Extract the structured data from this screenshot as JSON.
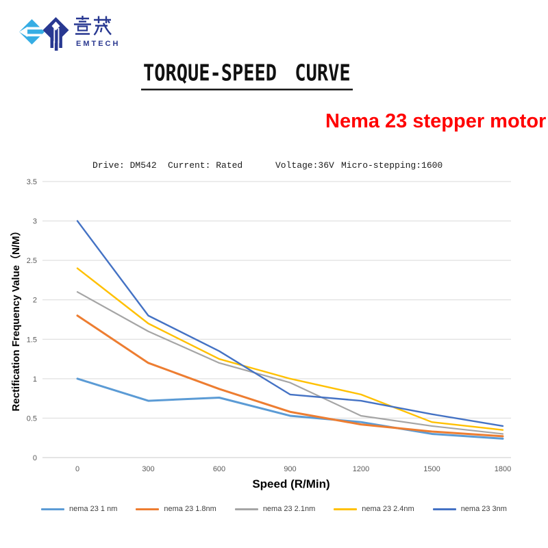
{
  "logo": {
    "cn_text": "壹茂",
    "en_text": "EMTECH",
    "light_blue": "#36ade4",
    "navy": "#283891"
  },
  "title": "TORQUE-SPEED CURVE",
  "subtitle": "Nema 23 stepper motor",
  "subtitle_color": "#ff0000",
  "specs": [
    "Drive: DM542",
    "Current: Rated",
    "Voltage:36V",
    "Micro-stepping:1600"
  ],
  "chart_data": {
    "type": "line",
    "title": "",
    "xlabel": "Speed (R/Min)",
    "ylabel": "Rectification Frequency Value（N/M）",
    "categories": [
      0,
      300,
      600,
      900,
      1200,
      1500,
      1800
    ],
    "ylim": [
      0,
      3.5
    ],
    "ytick_step": 0.5,
    "grid": true,
    "legend_position": "bottom",
    "gridline_color": "#d9d9d9",
    "tick_label_color": "#595959",
    "series": [
      {
        "name": "nema 23 1 nm",
        "color": "#5b9bd5",
        "values": [
          1.0,
          0.72,
          0.76,
          0.53,
          0.45,
          0.3,
          0.24
        ]
      },
      {
        "name": "nema 23 1.8nm",
        "color": "#ed7d31",
        "values": [
          1.8,
          1.2,
          0.87,
          0.58,
          0.42,
          0.33,
          0.27
        ]
      },
      {
        "name": "nema 23 2.1nm",
        "color": "#a5a5a5",
        "values": [
          2.1,
          1.6,
          1.2,
          0.95,
          0.53,
          0.4,
          0.3
        ]
      },
      {
        "name": "nema 23 2.4nm",
        "color": "#ffc000",
        "values": [
          2.4,
          1.7,
          1.25,
          1.0,
          0.8,
          0.45,
          0.35
        ]
      },
      {
        "name": "nema 23 3nm",
        "color": "#4472c4",
        "values": [
          3.0,
          1.8,
          1.35,
          0.8,
          0.72,
          0.55,
          0.4
        ]
      }
    ]
  }
}
